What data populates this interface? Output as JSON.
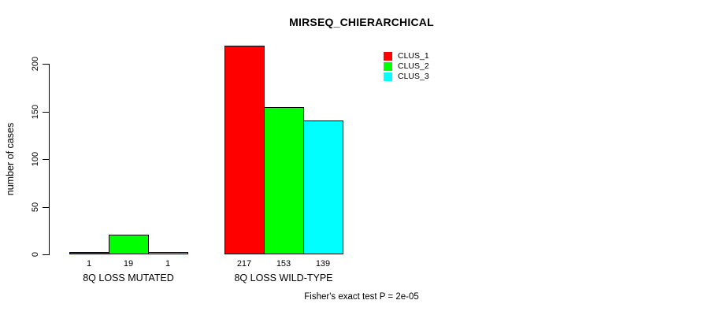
{
  "chart_data": {
    "type": "bar",
    "title": "MIRSEQ_CHIERARCHICAL",
    "ylabel": "number of cases",
    "xlabel": "",
    "footer": "Fisher's exact test P = 2e-05",
    "categories": [
      "8Q LOSS MUTATED",
      "8Q LOSS WILD-TYPE"
    ],
    "series": [
      {
        "name": "CLUS_1",
        "color": "#ff0000",
        "values": [
          1,
          217
        ]
      },
      {
        "name": "CLUS_2",
        "color": "#00ff00",
        "values": [
          19,
          153
        ]
      },
      {
        "name": "CLUS_3",
        "color": "#00ffff",
        "values": [
          1,
          139
        ]
      }
    ],
    "bar_value_labels": [
      [
        "1",
        "19",
        "1"
      ],
      [
        "217",
        "153",
        "139"
      ]
    ],
    "yticks": [
      "0",
      "50",
      "100",
      "150",
      "200"
    ],
    "ytick_values": [
      0,
      50,
      100,
      150,
      200
    ],
    "ylim": [
      0,
      224
    ],
    "grid": false,
    "legend_position": "top-right",
    "background_color": "#ffffff",
    "text_color": "#000000"
  }
}
